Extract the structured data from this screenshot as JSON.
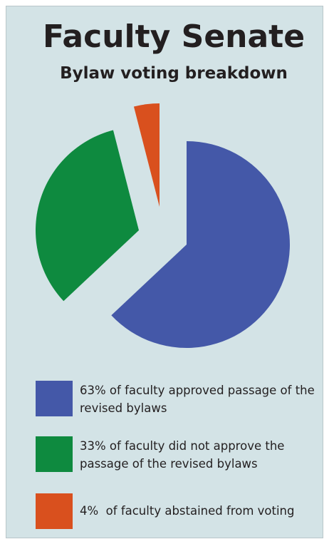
{
  "chart_data": {
    "type": "pie",
    "title": "Faculty Senate",
    "subtitle": "Bylaw voting breakdown",
    "categories": [
      "63% of faculty approved passage of the revised bylaws",
      "33% of faculty did not approve the passage of the revised bylaws",
      "4%  of faculty abstained from voting"
    ],
    "values": [
      63,
      33,
      4
    ],
    "colors": [
      "#4458a8",
      "#0e8a3f",
      "#d9501e"
    ]
  }
}
